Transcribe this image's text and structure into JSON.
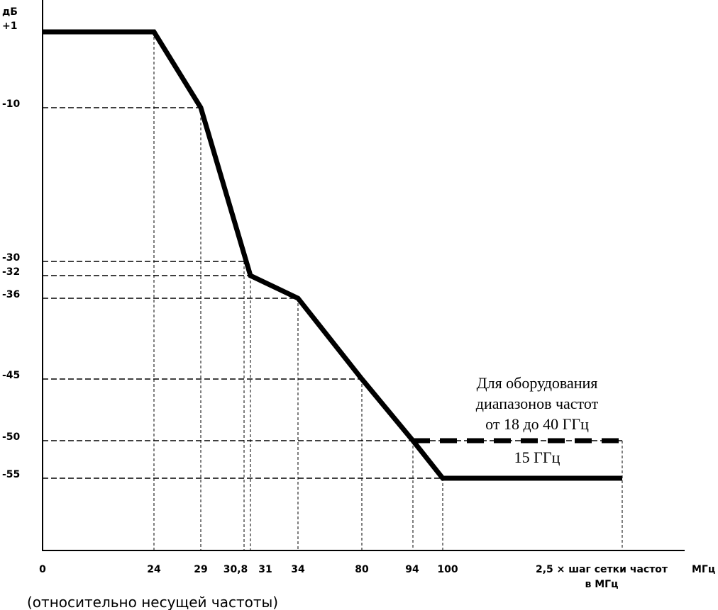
{
  "chart_data": {
    "type": "line",
    "yunit_lines": [
      "дБ",
      "+1"
    ],
    "xunit": "МГц",
    "caption": "(относительно несущей частоты)",
    "x_ticks": [
      "0",
      "24",
      "29",
      "30,8",
      "31",
      "34",
      "80",
      "94",
      "100"
    ],
    "x_last_tick_lines": [
      "2,5 × шаг сетки частот",
      "в МГц"
    ],
    "y_ticks": [
      "-10",
      "-30",
      "-32",
      "-36",
      "-45",
      "-50",
      "-55"
    ],
    "series": [
      {
        "values": [
          [
            0,
            1
          ],
          [
            24,
            1
          ],
          [
            29,
            -10
          ],
          [
            31,
            -32
          ],
          [
            34,
            -36
          ],
          [
            80,
            -45
          ],
          [
            94,
            -50
          ],
          [
            100,
            -55
          ],
          [
            "2,5 × шаг сетки частот",
            -55
          ]
        ]
      },
      {
        "name": "15 ГГц",
        "style": "dashed",
        "values": [
          [
            94,
            -50
          ],
          [
            "2,5 × шаг сетки частот",
            -50
          ]
        ]
      }
    ],
    "annotation_lines": [
      "Для оборудования",
      "диапазонов частот",
      "от 18 до 40 ГГц"
    ],
    "dashed_label": "15 ГГц",
    "x_scale": "non-uniform (categorical breakpoints)",
    "grid": "dashed guide lines at breakpoints",
    "colors": {
      "line": "#000000",
      "background": "#ffffff"
    }
  }
}
